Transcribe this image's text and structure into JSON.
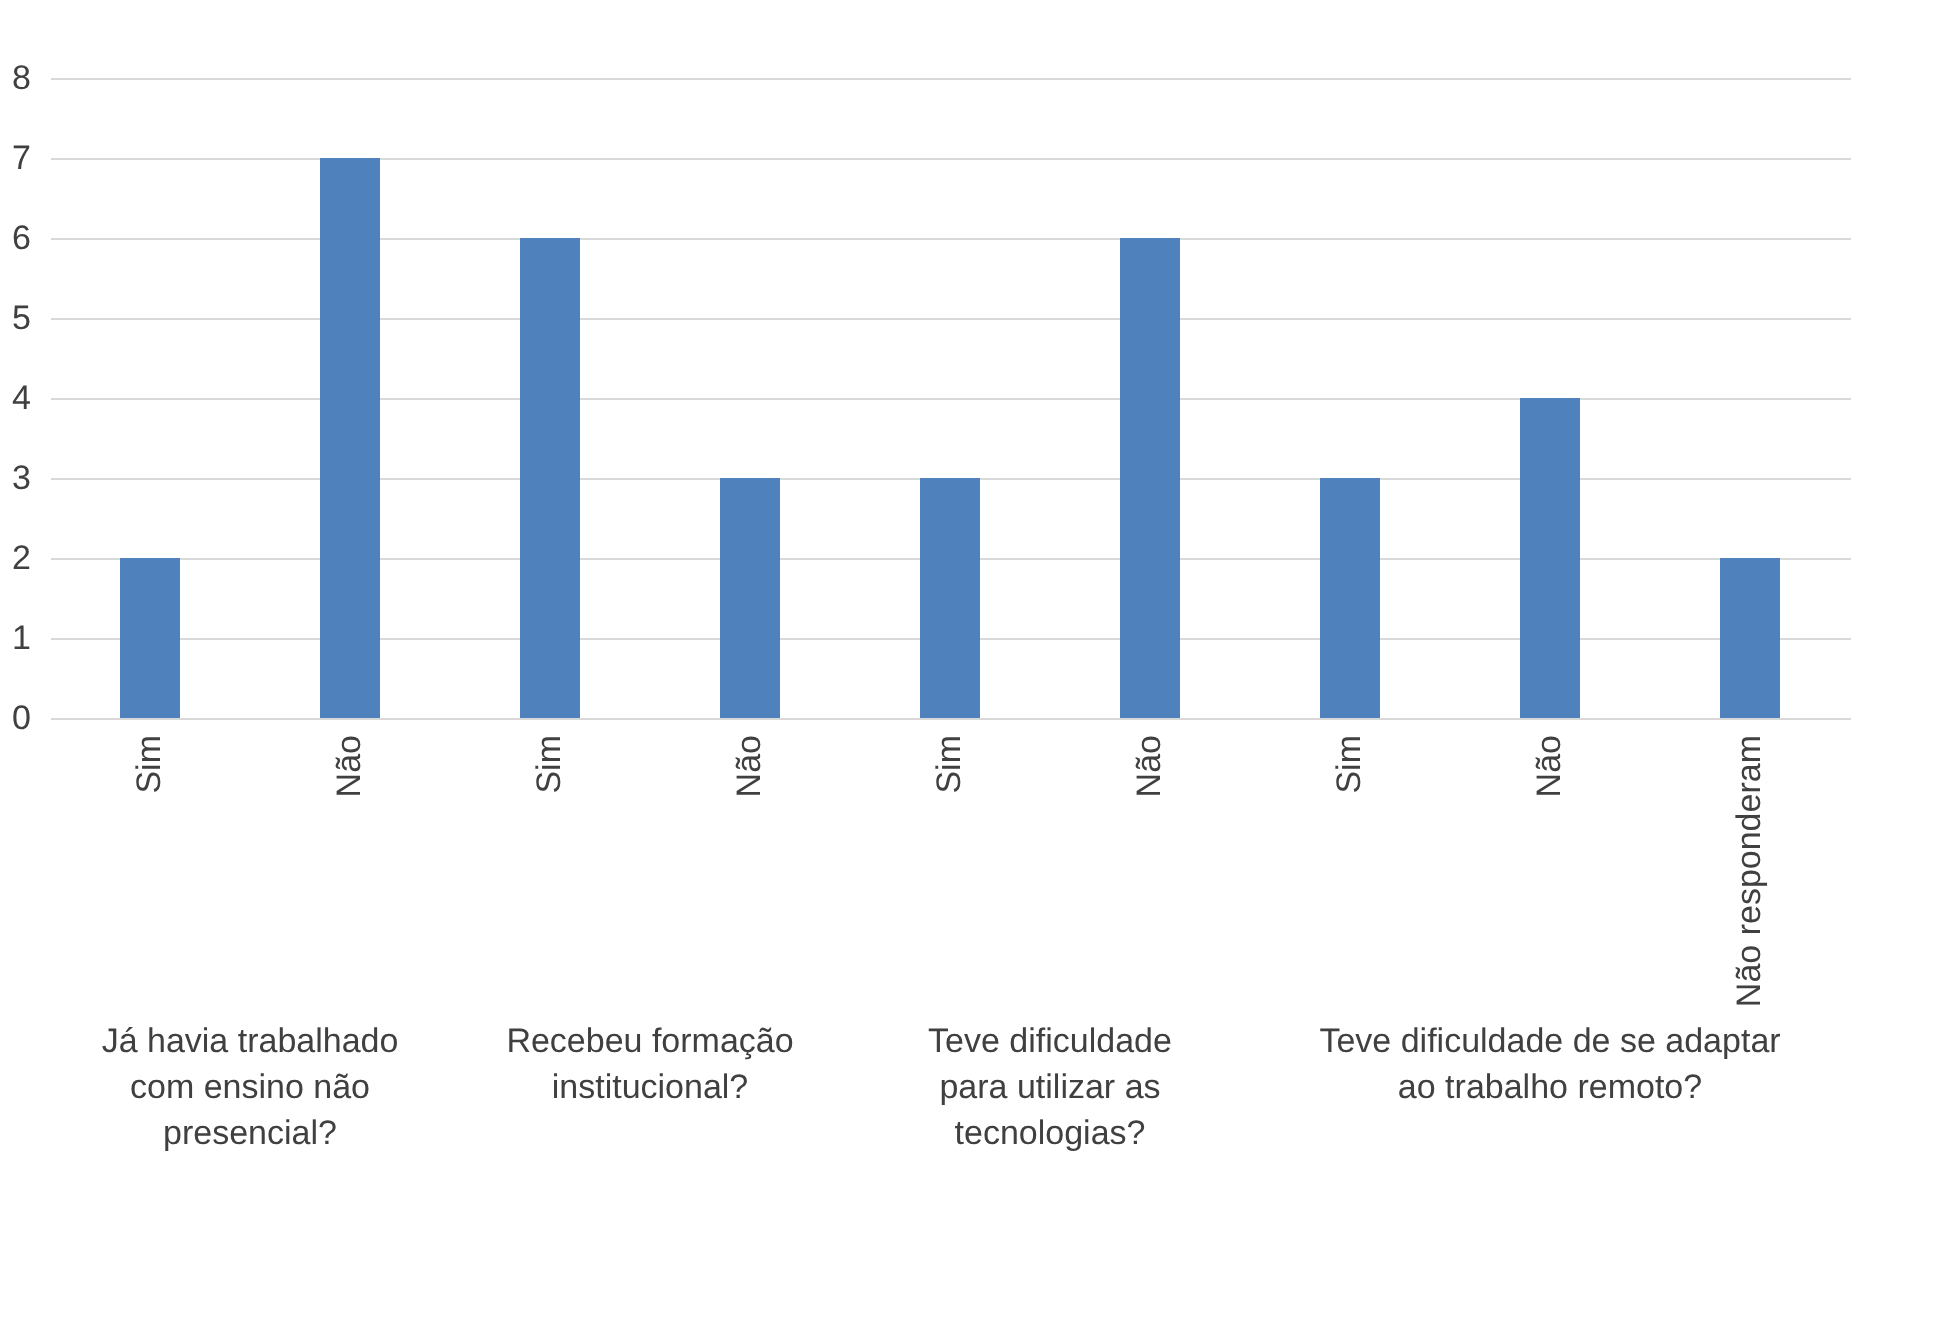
{
  "chart_data": {
    "type": "bar",
    "categories": [
      "Sim",
      "Não",
      "Sim",
      "Não",
      "Sim",
      "Não",
      "Sim",
      "Não",
      "Não responderam"
    ],
    "values": [
      2,
      7,
      6,
      3,
      3,
      6,
      3,
      4,
      2
    ],
    "color": "#4f81bd",
    "ylim": [
      0,
      8
    ],
    "yticks": [
      0,
      1,
      2,
      3,
      4,
      5,
      6,
      7,
      8
    ],
    "grid": "y",
    "annotations": [
      "Já havia trabalhado com ensino não presencial?",
      "Recebeu formação institucional?",
      "Teve dificuldade para utilizar as tecnologias?",
      "Teve dificuldade de se adaptar ao trabalho remoto?"
    ]
  }
}
